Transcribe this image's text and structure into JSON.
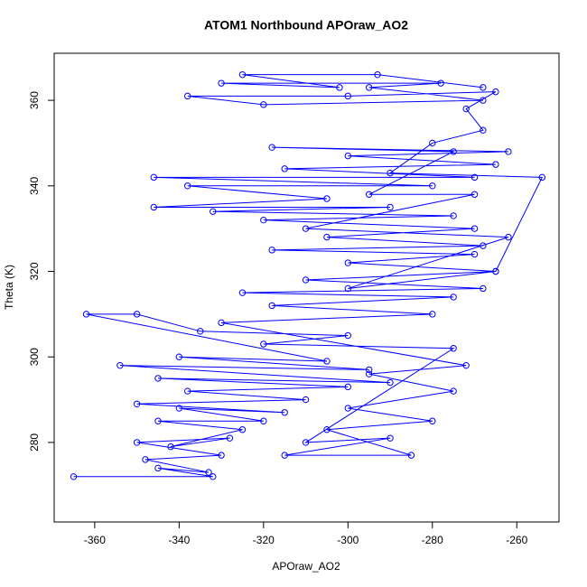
{
  "chart_data": {
    "type": "line",
    "markers": true,
    "title": "ATOM1 Northbound APOraw_AO2",
    "x_label": "APOraw_AO2",
    "y_label": "Theta (K)",
    "xlim": [
      -369.6,
      -250
    ],
    "ylim": [
      261.4,
      371
    ],
    "xticks": [
      -360,
      -340,
      -320,
      -300,
      -280,
      -260
    ],
    "yticks": [
      280,
      300,
      320,
      340,
      360
    ],
    "x": [
      -365,
      -332,
      -345,
      -333,
      -348,
      -330,
      -350,
      -328,
      -342,
      -325,
      -345,
      -320,
      -340,
      -315,
      -350,
      -310,
      -338,
      -300,
      -345,
      -290,
      -354,
      -295,
      -340,
      -305,
      -362,
      -350,
      -335,
      -300,
      -320,
      -275,
      -310,
      -290,
      -315,
      -285,
      -305,
      -280,
      -300,
      -275,
      -295,
      -272,
      -330,
      -280,
      -318,
      -275,
      -325,
      -268,
      -310,
      -265,
      -300,
      -270,
      -318,
      -268,
      -305,
      -270,
      -320,
      -275,
      -332,
      -290,
      -346,
      -305,
      -338,
      -280,
      -346,
      -270,
      -315,
      -265,
      -300,
      -262,
      -318,
      -275,
      -295,
      -270,
      -310,
      -262,
      -300,
      -265,
      -254,
      -290,
      -280,
      -268,
      -272,
      -265,
      -300,
      -338,
      -320,
      -268,
      -295,
      -278,
      -330,
      -302,
      -325,
      -293,
      -268
    ],
    "series": [
      {
        "color": "#0000ff",
        "values": [
          272,
          272,
          274,
          273,
          276,
          277,
          280,
          281,
          279,
          283,
          285,
          285,
          288,
          287,
          289,
          290,
          292,
          293,
          295,
          294,
          298,
          297,
          300,
          299,
          310,
          310,
          306,
          305,
          303,
          302,
          280,
          281,
          277,
          277,
          283,
          285,
          288,
          292,
          296,
          298,
          308,
          310,
          312,
          314,
          315,
          316,
          318,
          320,
          322,
          324,
          325,
          326,
          328,
          330,
          332,
          333,
          334,
          335,
          335,
          337,
          340,
          340,
          342,
          342,
          344,
          345,
          347,
          348,
          349,
          348,
          338,
          338,
          330,
          328,
          316,
          320,
          342,
          343,
          350,
          353,
          358,
          362,
          361,
          361,
          359,
          360,
          363,
          364,
          364,
          363,
          366,
          366,
          363
        ]
      }
    ]
  }
}
